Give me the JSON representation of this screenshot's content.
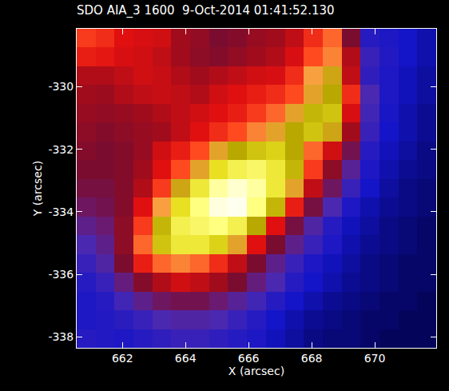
{
  "chart_data": {
    "type": "heatmap",
    "title": "SDO AIA_3 1600  9-Oct-2014 01:41:52.130",
    "xlabel": "X (arcsec)",
    "ylabel": "Y (arcsec)",
    "x": [
      660.85,
      661.45,
      662.05,
      662.65,
      663.25,
      663.85,
      664.45,
      665.05,
      665.65,
      666.25,
      666.85,
      667.45,
      668.05,
      668.65,
      669.25,
      669.85,
      670.45,
      671.05,
      671.65
    ],
    "y": [
      -328.45,
      -329.05,
      -329.65,
      -330.25,
      -330.85,
      -331.45,
      -332.05,
      -332.65,
      -333.25,
      -333.85,
      -334.45,
      -335.05,
      -335.65,
      -336.25,
      -336.85,
      -337.45,
      -338.05
    ],
    "z": [
      [
        62,
        60,
        56,
        55,
        54,
        48,
        45,
        40,
        42,
        46,
        48,
        52,
        60,
        66,
        40,
        14,
        12,
        10,
        8
      ],
      [
        58,
        57,
        55,
        54,
        52,
        48,
        44,
        42,
        45,
        48,
        50,
        55,
        64,
        68,
        50,
        18,
        13,
        10,
        8
      ],
      [
        50,
        50,
        52,
        54,
        53,
        50,
        48,
        50,
        52,
        54,
        55,
        60,
        70,
        74,
        52,
        16,
        12,
        9,
        7
      ],
      [
        48,
        47,
        50,
        52,
        53,
        52,
        50,
        54,
        56,
        58,
        60,
        64,
        72,
        76,
        60,
        22,
        12,
        9,
        7
      ],
      [
        46,
        45,
        46,
        48,
        50,
        52,
        54,
        56,
        58,
        62,
        66,
        72,
        78,
        80,
        55,
        20,
        11,
        8,
        6
      ],
      [
        44,
        42,
        44,
        46,
        48,
        52,
        56,
        60,
        64,
        68,
        72,
        76,
        80,
        74,
        48,
        18,
        10,
        8,
        6
      ],
      [
        42,
        40,
        42,
        46,
        54,
        58,
        64,
        72,
        76,
        80,
        82,
        76,
        66,
        54,
        36,
        14,
        9,
        7,
        5
      ],
      [
        40,
        40,
        42,
        48,
        56,
        64,
        72,
        84,
        88,
        90,
        86,
        78,
        62,
        44,
        26,
        12,
        8,
        6,
        5
      ],
      [
        38,
        38,
        42,
        50,
        62,
        74,
        86,
        94,
        97,
        94,
        86,
        72,
        52,
        34,
        18,
        10,
        7,
        5,
        4
      ],
      [
        34,
        36,
        42,
        56,
        70,
        84,
        92,
        98,
        99,
        92,
        78,
        58,
        38,
        22,
        12,
        8,
        6,
        5,
        4
      ],
      [
        28,
        32,
        44,
        62,
        78,
        88,
        90,
        92,
        88,
        76,
        56,
        38,
        24,
        14,
        9,
        7,
        5,
        4,
        3
      ],
      [
        22,
        28,
        44,
        66,
        80,
        86,
        86,
        82,
        72,
        56,
        40,
        28,
        18,
        12,
        8,
        6,
        5,
        4,
        3
      ],
      [
        18,
        24,
        40,
        58,
        66,
        68,
        66,
        60,
        52,
        40,
        28,
        18,
        12,
        9,
        7,
        5,
        4,
        3,
        3
      ],
      [
        14,
        18,
        30,
        42,
        50,
        54,
        52,
        48,
        40,
        30,
        22,
        14,
        10,
        8,
        6,
        5,
        4,
        3,
        3
      ],
      [
        12,
        14,
        20,
        28,
        34,
        36,
        36,
        32,
        26,
        20,
        14,
        10,
        8,
        6,
        5,
        4,
        3,
        3,
        2
      ],
      [
        12,
        13,
        15,
        18,
        22,
        24,
        24,
        22,
        18,
        14,
        10,
        8,
        6,
        5,
        4,
        3,
        3,
        2,
        2
      ],
      [
        14,
        13,
        12,
        14,
        16,
        18,
        18,
        16,
        14,
        12,
        9,
        7,
        5,
        4,
        4,
        3,
        2,
        2,
        2
      ]
    ],
    "zlim": [
      0,
      100
    ],
    "xlim": [
      660.55,
      671.95
    ],
    "ylim": [
      -338.35,
      -328.15
    ],
    "xticks": [
      662,
      664,
      666,
      668,
      670
    ],
    "yticks": [
      -330,
      -332,
      -334,
      -336,
      -338
    ],
    "grid": false
  }
}
